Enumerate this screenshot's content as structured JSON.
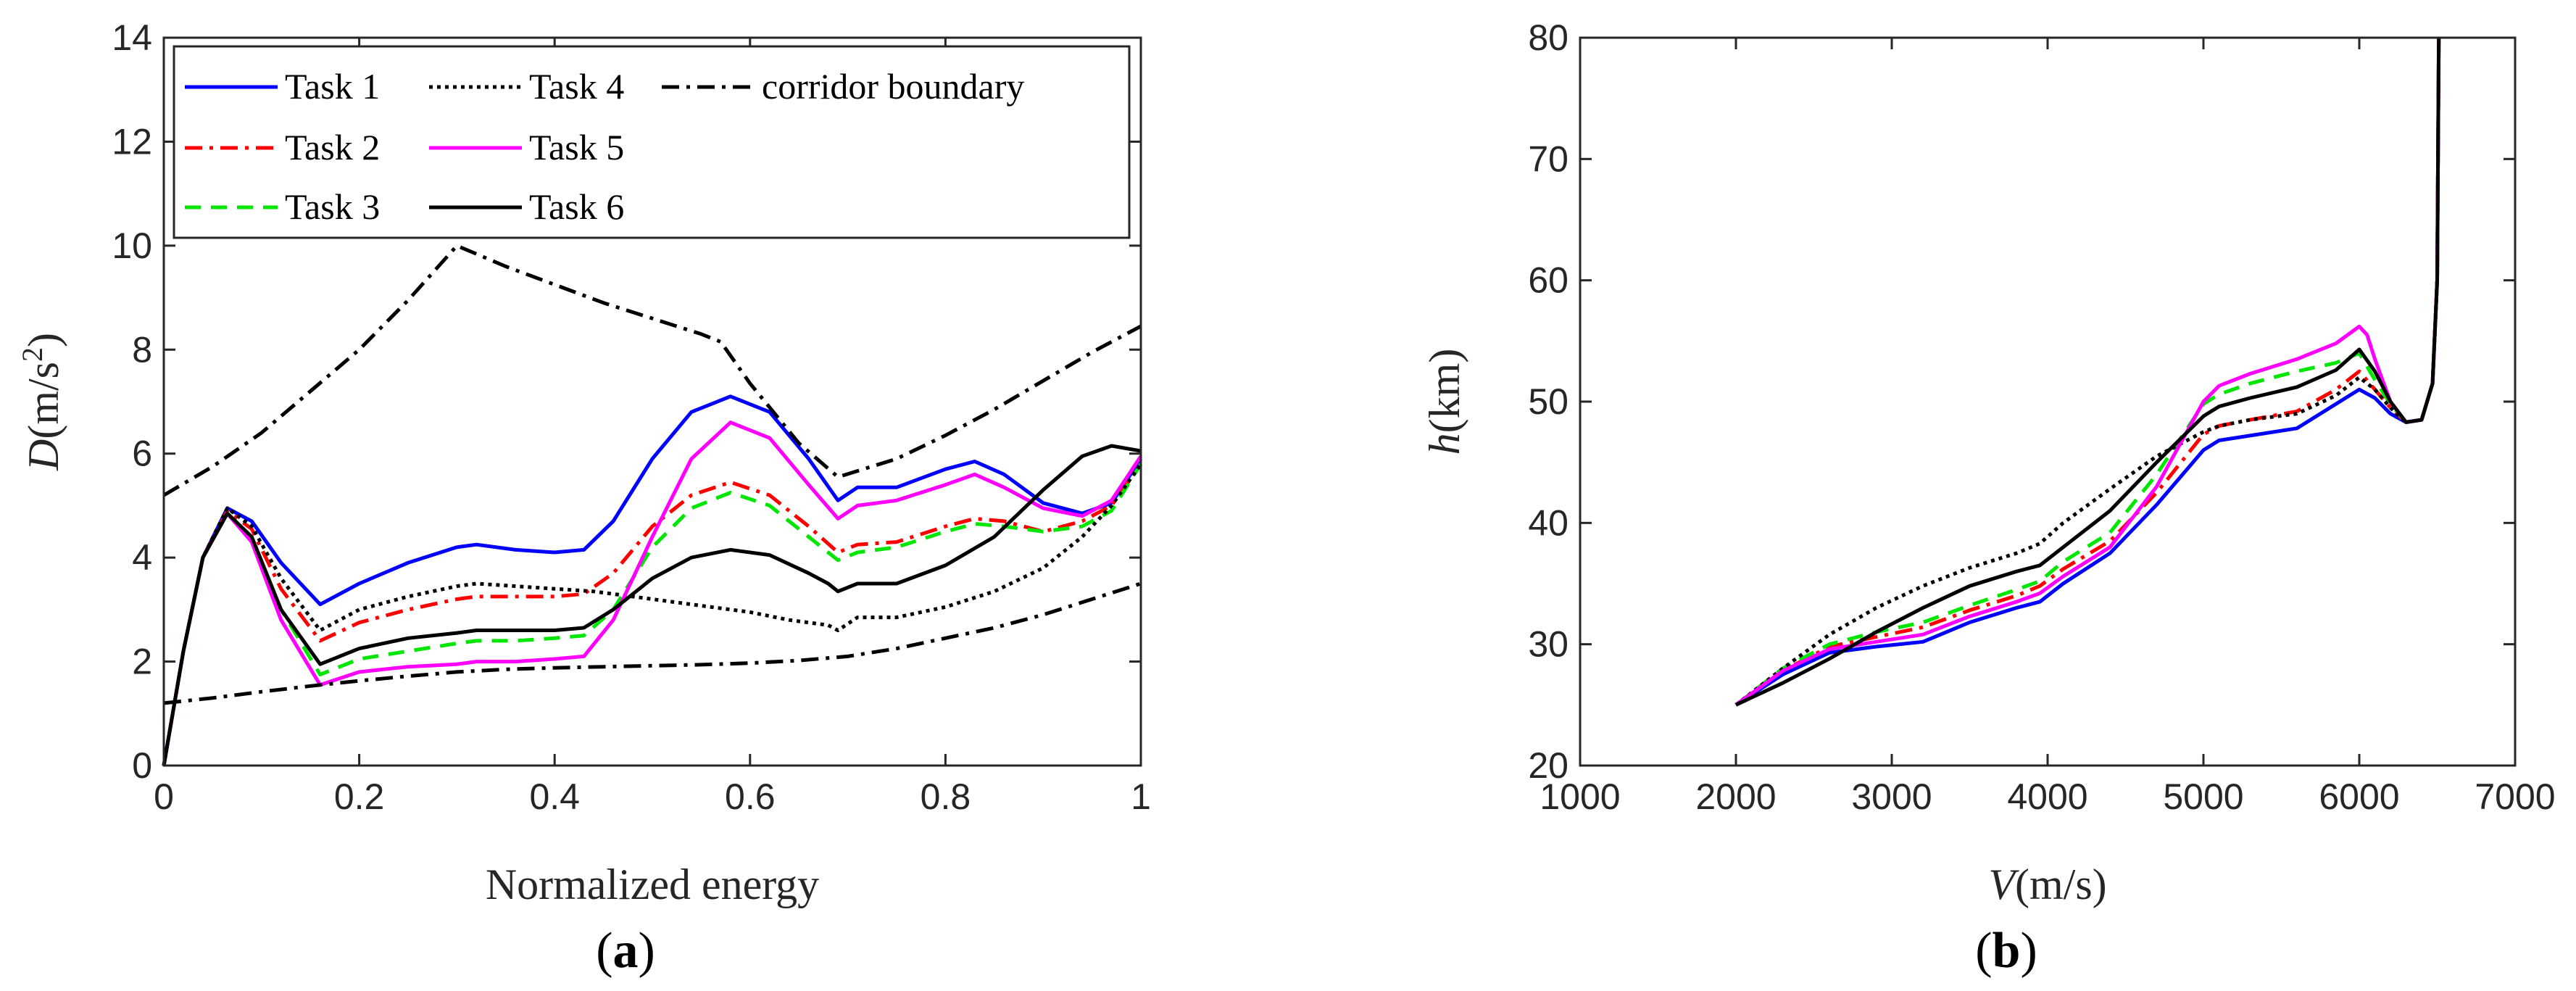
{
  "chart_data": [
    {
      "type": "line",
      "panel_label": "a",
      "title": "",
      "xlabel": "Normalized energy",
      "ylabel_italic": "D",
      "ylabel_unit_prefix": "(m/s",
      "ylabel_unit_sup": "2",
      "ylabel_unit_suffix": ")",
      "xlim": [
        0,
        1
      ],
      "ylim": [
        0,
        14
      ],
      "xticks": [
        0,
        0.2,
        0.4,
        0.6,
        0.8,
        1
      ],
      "xtick_labels": [
        "0",
        "0.2",
        "0.4",
        "0.6",
        "0.8",
        "1"
      ],
      "yticks": [
        0,
        2,
        4,
        6,
        8,
        10,
        12,
        14
      ],
      "ytick_labels": [
        "0",
        "2",
        "4",
        "6",
        "8",
        "10",
        "12",
        "14"
      ],
      "grid": false,
      "legend_position": "top",
      "series": [
        {
          "name": "Task 1",
          "color": "#0000ff",
          "style": "solid",
          "x": [
            0,
            0.02,
            0.04,
            0.065,
            0.09,
            0.12,
            0.16,
            0.2,
            0.25,
            0.3,
            0.32,
            0.36,
            0.4,
            0.43,
            0.46,
            0.5,
            0.54,
            0.58,
            0.62,
            0.66,
            0.69,
            0.71,
            0.75,
            0.8,
            0.83,
            0.86,
            0.9,
            0.94,
            0.97,
            1.0
          ],
          "y": [
            0,
            2.2,
            4.0,
            4.95,
            4.7,
            3.9,
            3.1,
            3.5,
            3.9,
            4.2,
            4.25,
            4.15,
            4.1,
            4.15,
            4.7,
            5.9,
            6.8,
            7.1,
            6.8,
            5.9,
            5.1,
            5.35,
            5.35,
            5.7,
            5.85,
            5.6,
            5.05,
            4.85,
            5.05,
            5.9
          ]
        },
        {
          "name": "Task 2",
          "color": "#ff0000",
          "style": "dashdot",
          "x": [
            0,
            0.02,
            0.04,
            0.065,
            0.09,
            0.12,
            0.16,
            0.2,
            0.25,
            0.3,
            0.32,
            0.36,
            0.4,
            0.43,
            0.46,
            0.5,
            0.54,
            0.58,
            0.62,
            0.66,
            0.69,
            0.71,
            0.75,
            0.8,
            0.83,
            0.86,
            0.9,
            0.94,
            0.97,
            1.0
          ],
          "y": [
            0,
            2.2,
            4.0,
            4.9,
            4.55,
            3.4,
            2.4,
            2.75,
            3.0,
            3.2,
            3.25,
            3.25,
            3.25,
            3.3,
            3.7,
            4.6,
            5.2,
            5.45,
            5.2,
            4.6,
            4.1,
            4.25,
            4.3,
            4.6,
            4.75,
            4.7,
            4.5,
            4.7,
            5.0,
            5.8
          ]
        },
        {
          "name": "Task 3",
          "color": "#00e600",
          "style": "dashed",
          "x": [
            0,
            0.02,
            0.04,
            0.065,
            0.09,
            0.12,
            0.16,
            0.2,
            0.25,
            0.3,
            0.32,
            0.36,
            0.4,
            0.43,
            0.46,
            0.5,
            0.54,
            0.58,
            0.62,
            0.66,
            0.69,
            0.71,
            0.75,
            0.8,
            0.83,
            0.86,
            0.9,
            0.94,
            0.97,
            1.0
          ],
          "y": [
            0,
            2.2,
            4.0,
            4.85,
            4.4,
            3.0,
            1.75,
            2.05,
            2.2,
            2.35,
            2.4,
            2.4,
            2.45,
            2.5,
            3.0,
            4.2,
            4.95,
            5.25,
            5.0,
            4.4,
            3.95,
            4.1,
            4.2,
            4.5,
            4.65,
            4.6,
            4.5,
            4.6,
            4.9,
            5.8
          ]
        },
        {
          "name": "Task 4",
          "color": "#000000",
          "style": "dotted",
          "x": [
            0,
            0.02,
            0.04,
            0.065,
            0.09,
            0.12,
            0.16,
            0.2,
            0.25,
            0.3,
            0.32,
            0.36,
            0.4,
            0.44,
            0.48,
            0.52,
            0.56,
            0.6,
            0.64,
            0.66,
            0.68,
            0.69,
            0.71,
            0.75,
            0.8,
            0.85,
            0.9,
            0.94,
            0.97,
            1.0
          ],
          "y": [
            0,
            2.2,
            4.0,
            4.95,
            4.6,
            3.6,
            2.6,
            3.0,
            3.25,
            3.45,
            3.5,
            3.45,
            3.4,
            3.35,
            3.25,
            3.15,
            3.05,
            2.95,
            2.8,
            2.75,
            2.7,
            2.6,
            2.85,
            2.85,
            3.05,
            3.35,
            3.8,
            4.4,
            5.0,
            5.8
          ]
        },
        {
          "name": "Task 5",
          "color": "#ff00ff",
          "style": "solid",
          "x": [
            0,
            0.02,
            0.04,
            0.065,
            0.09,
            0.12,
            0.16,
            0.2,
            0.25,
            0.3,
            0.32,
            0.36,
            0.4,
            0.43,
            0.46,
            0.5,
            0.54,
            0.58,
            0.62,
            0.66,
            0.69,
            0.71,
            0.75,
            0.8,
            0.83,
            0.86,
            0.9,
            0.94,
            0.97,
            1.0
          ],
          "y": [
            0,
            2.2,
            4.0,
            4.85,
            4.3,
            2.8,
            1.55,
            1.8,
            1.9,
            1.95,
            2.0,
            2.0,
            2.05,
            2.1,
            2.8,
            4.4,
            5.9,
            6.6,
            6.3,
            5.4,
            4.75,
            5.0,
            5.1,
            5.4,
            5.6,
            5.35,
            4.95,
            4.8,
            5.1,
            5.95
          ]
        },
        {
          "name": "Task 6",
          "color": "#000000",
          "style": "solid",
          "x": [
            0,
            0.02,
            0.04,
            0.065,
            0.09,
            0.12,
            0.16,
            0.2,
            0.25,
            0.3,
            0.32,
            0.36,
            0.4,
            0.43,
            0.46,
            0.5,
            0.54,
            0.58,
            0.62,
            0.66,
            0.68,
            0.69,
            0.71,
            0.75,
            0.8,
            0.85,
            0.9,
            0.94,
            0.97,
            1.0
          ],
          "y": [
            0,
            2.2,
            4.0,
            4.85,
            4.4,
            3.0,
            1.95,
            2.25,
            2.45,
            2.55,
            2.6,
            2.6,
            2.6,
            2.65,
            3.0,
            3.6,
            4.0,
            4.15,
            4.05,
            3.7,
            3.5,
            3.35,
            3.5,
            3.5,
            3.85,
            4.4,
            5.3,
            5.95,
            6.15,
            6.05
          ]
        },
        {
          "name": "corridor boundary",
          "color": "#000000",
          "style": "dashdot",
          "x": [
            0,
            0.05,
            0.1,
            0.15,
            0.2,
            0.25,
            0.3,
            0.35,
            0.4,
            0.45,
            0.5,
            0.55,
            0.57,
            0.6,
            0.65,
            0.69,
            0.75,
            0.8,
            0.85,
            0.9,
            0.95,
            1.0
          ],
          "y": [
            5.2,
            5.75,
            6.4,
            7.2,
            8.0,
            8.95,
            10.0,
            9.6,
            9.25,
            8.9,
            8.6,
            8.3,
            8.15,
            7.35,
            6.2,
            5.55,
            5.9,
            6.35,
            6.85,
            7.4,
            7.95,
            8.45
          ]
        },
        {
          "name": "corridor boundary",
          "color": "#000000",
          "style": "dashdot",
          "in_legend": false,
          "x": [
            0,
            0.05,
            0.1,
            0.15,
            0.2,
            0.25,
            0.3,
            0.35,
            0.4,
            0.45,
            0.5,
            0.55,
            0.6,
            0.65,
            0.7,
            0.75,
            0.8,
            0.85,
            0.9,
            0.95,
            1.0
          ],
          "y": [
            1.2,
            1.3,
            1.42,
            1.53,
            1.63,
            1.72,
            1.8,
            1.85,
            1.88,
            1.9,
            1.92,
            1.94,
            1.97,
            2.02,
            2.1,
            2.25,
            2.45,
            2.65,
            2.9,
            3.2,
            3.5
          ]
        }
      ],
      "legend_entries": [
        "Task 1",
        "Task 4",
        "corridor boundary",
        "Task 2",
        "Task 5",
        "Task 3",
        "Task 6"
      ]
    },
    {
      "type": "line",
      "panel_label": "b",
      "title": "",
      "xlabel_italic": "V",
      "xlabel_unit": "(m/s)",
      "ylabel_italic": "h",
      "ylabel_unit": "(km)",
      "xlim": [
        1000,
        7000
      ],
      "ylim": [
        20,
        80
      ],
      "xticks": [
        1000,
        2000,
        3000,
        4000,
        5000,
        6000,
        7000
      ],
      "xtick_labels": [
        "1000",
        "2000",
        "3000",
        "4000",
        "5000",
        "6000",
        "7000"
      ],
      "yticks": [
        20,
        30,
        40,
        50,
        60,
        70,
        80
      ],
      "ytick_labels": [
        "20",
        "30",
        "40",
        "50",
        "60",
        "70",
        "80"
      ],
      "grid": false,
      "series": [
        {
          "name": "Task 1",
          "color": "#0000ff",
          "style": "solid",
          "x": [
            2000,
            2300,
            2600,
            2900,
            3200,
            3500,
            3800,
            3950,
            4100,
            4400,
            4700,
            5000,
            5100,
            5300,
            5600,
            5850,
            6000,
            6100,
            6200,
            6300,
            6400,
            6470,
            6500,
            6505,
            6510
          ],
          "y": [
            25,
            27.5,
            29.3,
            29.8,
            30.2,
            31.8,
            33.0,
            33.5,
            35.0,
            37.5,
            41.5,
            46.0,
            46.8,
            47.2,
            47.8,
            49.8,
            51.0,
            50.3,
            49.0,
            48.3,
            48.5,
            51.5,
            60.0,
            70.0,
            80.0
          ]
        },
        {
          "name": "Task 2",
          "color": "#ff0000",
          "style": "dashdot",
          "x": [
            2000,
            2300,
            2600,
            2900,
            3200,
            3500,
            3800,
            3950,
            4100,
            4400,
            4700,
            5000,
            5100,
            5300,
            5600,
            5850,
            6000,
            6100,
            6200,
            6300,
            6400,
            6470,
            6500,
            6505,
            6510
          ],
          "y": [
            25,
            27.8,
            29.8,
            30.6,
            31.4,
            32.8,
            34.0,
            34.8,
            36.2,
            38.5,
            42.5,
            47.3,
            48.0,
            48.5,
            49.2,
            51.0,
            52.5,
            51.0,
            49.5,
            48.3,
            48.5,
            51.5,
            60.0,
            70.0,
            80.0
          ]
        },
        {
          "name": "Task 3",
          "color": "#00e600",
          "style": "dashed",
          "x": [
            2000,
            2300,
            2600,
            2900,
            3200,
            3500,
            3800,
            3950,
            4100,
            4400,
            4700,
            5000,
            5100,
            5300,
            5600,
            5850,
            6000,
            6100,
            6200,
            6300,
            6400,
            6470,
            6500,
            6505,
            6510
          ],
          "y": [
            25,
            28.0,
            30.0,
            31.0,
            31.8,
            33.2,
            34.5,
            35.2,
            36.8,
            39.2,
            44.0,
            49.8,
            50.6,
            51.5,
            52.5,
            53.2,
            54.0,
            51.8,
            49.8,
            48.3,
            48.5,
            51.5,
            60.0,
            70.0,
            80.0
          ]
        },
        {
          "name": "Task 4",
          "color": "#000000",
          "style": "dotted",
          "x": [
            2000,
            2300,
            2600,
            2900,
            3200,
            3500,
            3800,
            3950,
            4100,
            4400,
            4700,
            5000,
            5100,
            5300,
            5600,
            5850,
            6000,
            6100,
            6200,
            6300,
            6400,
            6470,
            6500,
            6505,
            6510
          ],
          "y": [
            25,
            28.0,
            30.8,
            33.0,
            34.8,
            36.3,
            37.5,
            38.3,
            40.0,
            42.8,
            45.5,
            47.5,
            48.0,
            48.5,
            49.0,
            50.5,
            52.0,
            51.0,
            49.5,
            48.3,
            48.5,
            51.5,
            60.0,
            70.0,
            80.0
          ]
        },
        {
          "name": "Task 5",
          "color": "#ff00ff",
          "style": "solid",
          "x": [
            2000,
            2300,
            2600,
            2900,
            3200,
            3500,
            3800,
            3950,
            4100,
            4400,
            4700,
            5000,
            5100,
            5300,
            5600,
            5850,
            6000,
            6050,
            6100,
            6200,
            6300,
            6400,
            6470,
            6500,
            6505,
            6510
          ],
          "y": [
            25,
            27.8,
            29.6,
            30.2,
            30.8,
            32.3,
            33.5,
            34.2,
            35.6,
            38.0,
            43.0,
            50.0,
            51.3,
            52.3,
            53.5,
            54.8,
            56.2,
            55.5,
            53.5,
            50.0,
            48.3,
            48.5,
            51.5,
            60.0,
            70.0,
            80.0
          ]
        },
        {
          "name": "Task 6",
          "color": "#000000",
          "style": "solid",
          "x": [
            2000,
            2300,
            2600,
            2900,
            3200,
            3500,
            3800,
            3950,
            4100,
            4400,
            4700,
            5000,
            5100,
            5300,
            5600,
            5850,
            6000,
            6100,
            6200,
            6300,
            6400,
            6470,
            6500,
            6505,
            6510
          ],
          "y": [
            25,
            26.8,
            28.8,
            31.0,
            33.0,
            34.8,
            36.0,
            36.5,
            38.0,
            41.0,
            45.0,
            48.8,
            49.6,
            50.3,
            51.2,
            52.6,
            54.3,
            52.5,
            50.0,
            48.3,
            48.5,
            51.5,
            60.0,
            70.0,
            80.0
          ]
        }
      ]
    }
  ]
}
